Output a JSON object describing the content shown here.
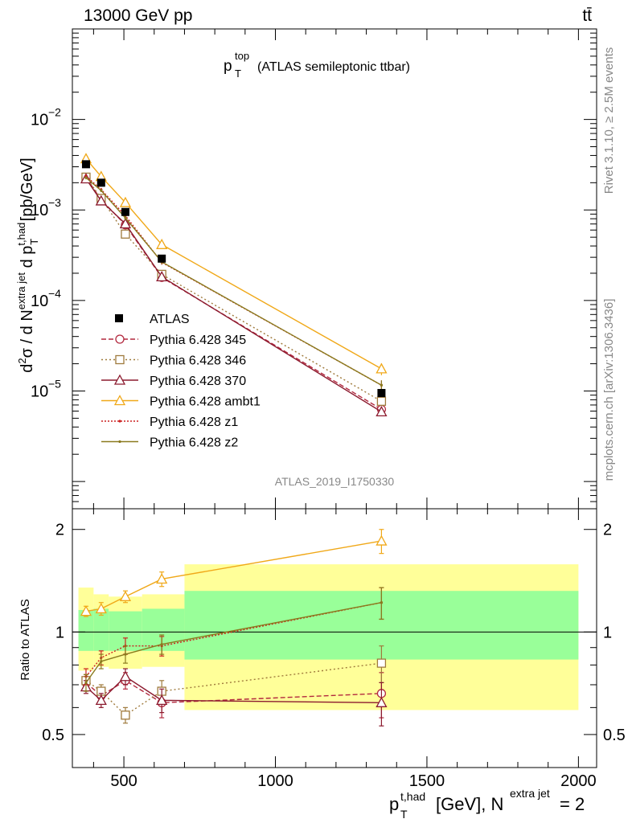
{
  "header": {
    "energy_label": "13000 GeV pp",
    "process_label": "tt̄",
    "title_main": "p",
    "title_sup": "top",
    "title_sub": "T",
    "title_rest": "(ATLAS semileptonic ttbar)",
    "analysis_id": "ATLAS_2019_I1750330",
    "side_rivet": "Rivet 3.1.10, ≥ 2.5M events",
    "side_mcplots": "mcplots.cern.ch [arXiv:1306.3436]"
  },
  "axes": {
    "ylabel_main": "d²σ / d N^{extra jet} d p_T^{t,had} [pb/GeV]",
    "ylabel_ratio": "Ratio to ATLAS",
    "xlabel": "p_T^{t,had} [GeV], N^{extra jet} = 2",
    "x_ticks": [
      "500",
      "1000",
      "1500",
      "2000"
    ],
    "ratio_ticks": [
      "0.5",
      "1",
      "2"
    ]
  },
  "chart_data": {
    "type": "line",
    "x_scale": "linear",
    "y_scale": "log",
    "xlim": [
      330,
      2060
    ],
    "ylim_main": [
      5e-07,
      0.1
    ],
    "ylim_ratio": [
      0.4,
      2.3
    ],
    "x": [
      375,
      425,
      505,
      625,
      1350
    ],
    "data": {
      "name": "ATLAS",
      "values": [
        0.0032,
        0.002,
        0.00095,
        0.00029,
        9.5e-06
      ]
    },
    "bins": [
      [
        350,
        400
      ],
      [
        400,
        450
      ],
      [
        450,
        560
      ],
      [
        560,
        700
      ],
      [
        700,
        2000
      ]
    ],
    "band_green": [
      [
        0.88,
        1.16
      ],
      [
        0.88,
        1.17
      ],
      [
        0.88,
        1.15
      ],
      [
        0.88,
        1.17
      ],
      [
        0.83,
        1.32
      ]
    ],
    "band_yellow": [
      [
        0.77,
        1.35
      ],
      [
        0.79,
        1.29
      ],
      [
        0.78,
        1.27
      ],
      [
        0.79,
        1.29
      ],
      [
        0.59,
        1.58
      ]
    ],
    "series": [
      {
        "name": "Pythia 6.428 345",
        "color": "#b2283e",
        "dash": "6,3",
        "marker": "circle",
        "ratio": [
          0.71,
          0.65,
          0.72,
          0.62,
          0.66
        ],
        "err": [
          0.03,
          0.03,
          0.04,
          0.06,
          0.1
        ]
      },
      {
        "name": "Pythia 6.428 346",
        "color": "#9f7a3c",
        "dash": "2,3",
        "marker": "square",
        "ratio": [
          0.72,
          0.67,
          0.57,
          0.67,
          0.81
        ],
        "err": [
          0.03,
          0.03,
          0.03,
          0.05,
          0.1
        ]
      },
      {
        "name": "Pythia 6.428 370",
        "color": "#8b1a2e",
        "dash": "",
        "marker": "triangle",
        "ratio": [
          0.69,
          0.63,
          0.74,
          0.63,
          0.62
        ],
        "err": [
          0.03,
          0.03,
          0.04,
          0.05,
          0.09
        ]
      },
      {
        "name": "Pythia 6.428 ambt1",
        "color": "#f0a818",
        "dash": "",
        "marker": "triangle",
        "ratio": [
          1.15,
          1.17,
          1.27,
          1.43,
          1.85
        ],
        "err": [
          0.04,
          0.05,
          0.05,
          0.07,
          0.15
        ]
      },
      {
        "name": "Pythia 6.428 z1",
        "color": "#cc2020",
        "dash": "2,2",
        "marker": "dot",
        "ratio": [
          0.74,
          0.84,
          0.91,
          0.91,
          1.22
        ],
        "err": [
          0.04,
          0.04,
          0.05,
          0.06,
          0.13
        ]
      },
      {
        "name": "Pythia 6.428 z2",
        "color": "#8a7a1e",
        "dash": "",
        "marker": "dot",
        "ratio": [
          0.71,
          0.82,
          0.86,
          0.92,
          1.22
        ],
        "err": [
          0.04,
          0.04,
          0.05,
          0.06,
          0.13
        ]
      }
    ]
  }
}
